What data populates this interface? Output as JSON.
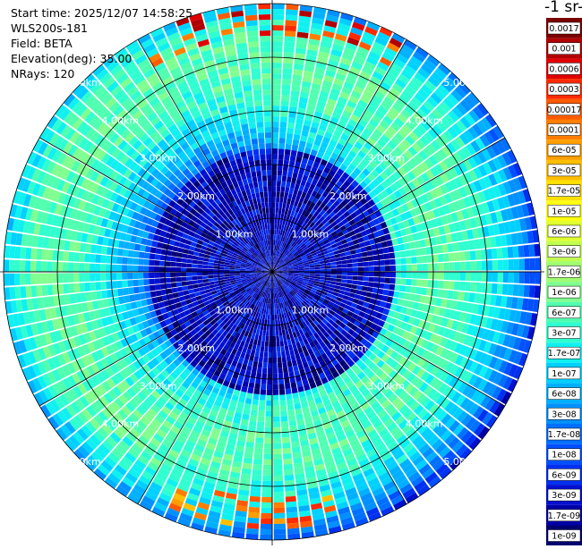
{
  "header": {
    "start_time": "Start time: 2025/12/07 14:58:25",
    "instrument": "WLS200s-181",
    "field": "Field: BETA",
    "elevation": "Elevation(deg): 35.00",
    "nrays": "NRays: 120"
  },
  "colorbar": {
    "title": "-1 sr-",
    "labels": [
      "0.0017",
      "0.001",
      "0.0006",
      "0.0003",
      "0.00017",
      "0.0001",
      "6e-05",
      "3e-05",
      "1.7e-05",
      "1e-05",
      "6e-06",
      "3e-06",
      "1.7e-06",
      "1e-06",
      "6e-07",
      "3e-07",
      "1.7e-07",
      "1e-07",
      "6e-08",
      "3e-08",
      "1.7e-08",
      "1e-08",
      "6e-09",
      "3e-09",
      "1.7e-09",
      "1e-09"
    ],
    "colors": [
      "#7a0000",
      "#b00000",
      "#e00000",
      "#ff2a00",
      "#ff5a00",
      "#ff7e00",
      "#ff9e00",
      "#ffbe00",
      "#ffe000",
      "#ffff10",
      "#e0ff30",
      "#c0ff50",
      "#a0ff70",
      "#80ff90",
      "#50ffb0",
      "#30ffd0",
      "#10f0f0",
      "#00d0ff",
      "#00b0ff",
      "#0090ff",
      "#0070ff",
      "#0050ff",
      "#0030f0",
      "#0010d0",
      "#0000a8",
      "#000070"
    ]
  },
  "chart_data": {
    "type": "heatmap",
    "projection": "polar (PPI scan)",
    "field": "BETA",
    "elevation_deg": 35.0,
    "n_rays": 120,
    "range_rings_km": [
      1,
      2,
      3,
      4,
      5
    ],
    "range_ring_labels": [
      "1.00km",
      "2.00km",
      "3.00km",
      "4.00km",
      "5.00km"
    ],
    "max_range_km": 5.0,
    "grid": true,
    "colorbar_position": "right",
    "color_scale": "log",
    "value_range": [
      1e-09,
      0.0017
    ]
  }
}
